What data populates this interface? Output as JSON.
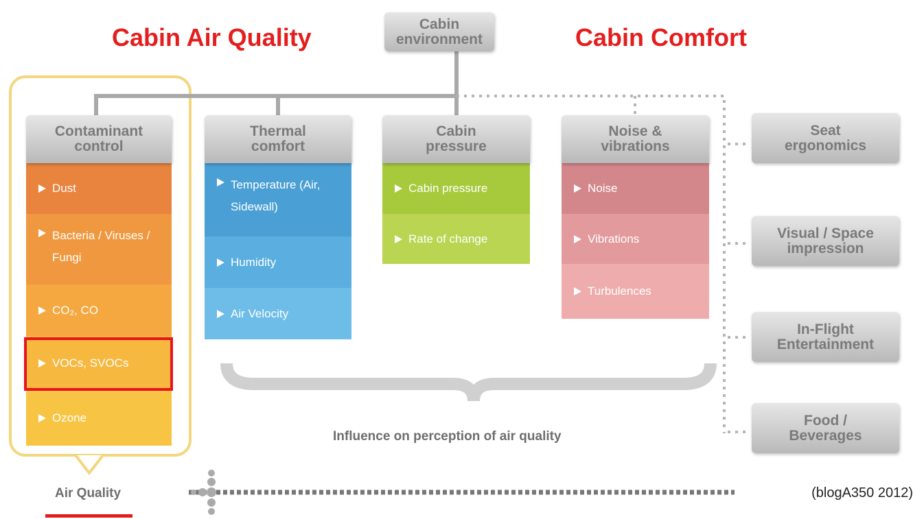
{
  "titles": {
    "left": "Cabin Air Quality",
    "right": "Cabin Comfort"
  },
  "root": {
    "lines": [
      "Cabin",
      "environment"
    ]
  },
  "columns": [
    {
      "lines": [
        "Contaminant",
        "control"
      ],
      "items": [
        {
          "text": "Dust",
          "color": "#e8843e"
        },
        {
          "text": "Bacteria / Viruses / Fungi",
          "color": "#f0983f"
        },
        {
          "text": "CO₂, CO",
          "color": "#f5a83f"
        },
        {
          "text": "VOCs, SVOCs",
          "color": "#f7b840"
        },
        {
          "text": "Ozone",
          "color": "#f8c444"
        }
      ]
    },
    {
      "lines": [
        "Thermal",
        "comfort"
      ],
      "items": [
        {
          "text": "Temperature (Air, Sidewall)",
          "color": "#4a9fd5"
        },
        {
          "text": "Humidity",
          "color": "#5aaee0"
        },
        {
          "text": "Air Velocity",
          "color": "#6dbde8"
        }
      ]
    },
    {
      "lines": [
        "Cabin",
        "pressure"
      ],
      "items": [
        {
          "text": "Cabin pressure",
          "color": "#a7c93c"
        },
        {
          "text": "Rate of change",
          "color": "#b9d552"
        }
      ]
    },
    {
      "lines": [
        "Noise &",
        "vibrations"
      ],
      "items": [
        {
          "text": "Noise",
          "color": "#d3878a"
        },
        {
          "text": "Vibrations",
          "color": "#e39a9c"
        },
        {
          "text": "Turbulences",
          "color": "#eeadac"
        }
      ]
    }
  ],
  "side": [
    {
      "lines": [
        "Seat",
        "ergonomics"
      ]
    },
    {
      "lines": [
        "Visual / Space",
        "impression"
      ]
    },
    {
      "lines": [
        "In-Flight",
        "Entertainment"
      ]
    },
    {
      "lines": [
        "Food /",
        "Beverages"
      ]
    }
  ],
  "brace_label": "Influence on perception of air quality",
  "air_quality": "Air Quality",
  "citation": "(blogA350 2012)"
}
